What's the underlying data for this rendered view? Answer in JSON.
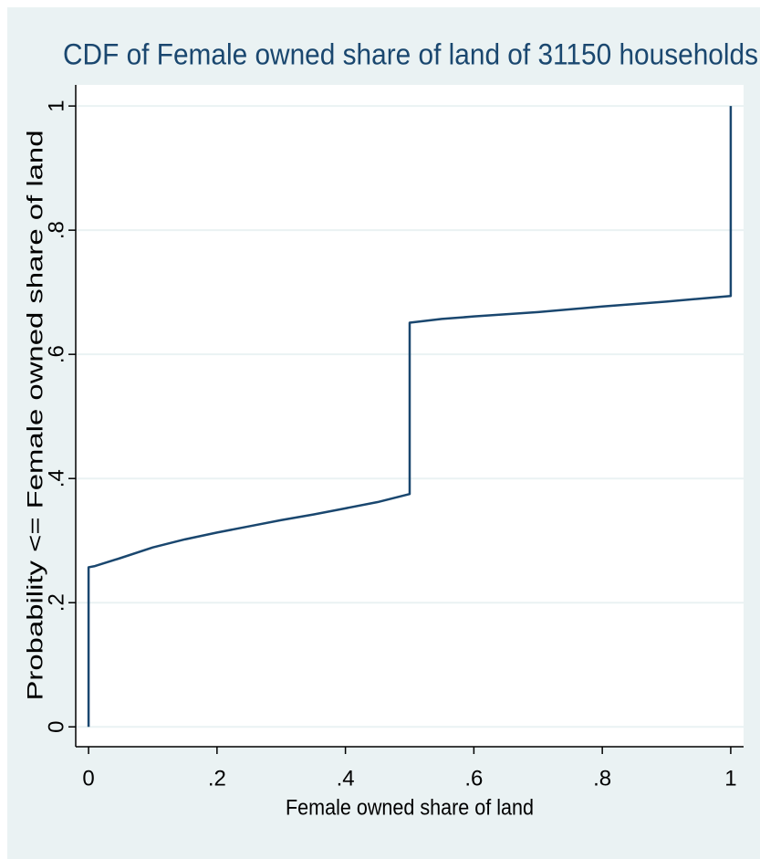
{
  "chart_data": {
    "type": "line",
    "title": "CDF of Female owned share of land of 31150 households",
    "x_label": "Female owned share of land",
    "y_label": "Probability <= Female owned share of land",
    "x": [
      0,
      0,
      0.01,
      0.05,
      0.1,
      0.15,
      0.2,
      0.25,
      0.3,
      0.35,
      0.4,
      0.45,
      0.5,
      0.5,
      0.55,
      0.6,
      0.7,
      0.8,
      0.9,
      1,
      1
    ],
    "values": [
      0,
      0.257,
      0.259,
      0.272,
      0.289,
      0.302,
      0.313,
      0.323,
      0.333,
      0.342,
      0.352,
      0.362,
      0.375,
      0.651,
      0.657,
      0.661,
      0.668,
      0.677,
      0.685,
      0.694,
      1
    ],
    "color": "#1a476f",
    "xlim": [
      -0.02,
      1.02
    ],
    "ylim": [
      -0.032,
      1.034
    ],
    "xticks": [
      0,
      {
        "value": 0.2,
        "label": ".2"
      },
      {
        "value": 0.4,
        "label": ".4"
      },
      {
        "value": 0.6,
        "label": ".6"
      },
      {
        "value": 0.8,
        "label": ".8"
      },
      1
    ],
    "yticks": [
      0,
      {
        "value": 0.2,
        "label": ".2"
      },
      {
        "value": 0.4,
        "label": ".4"
      },
      {
        "value": 0.6,
        "label": ".6"
      },
      {
        "value": 0.8,
        "label": ".8"
      },
      1
    ],
    "grid": true
  }
}
